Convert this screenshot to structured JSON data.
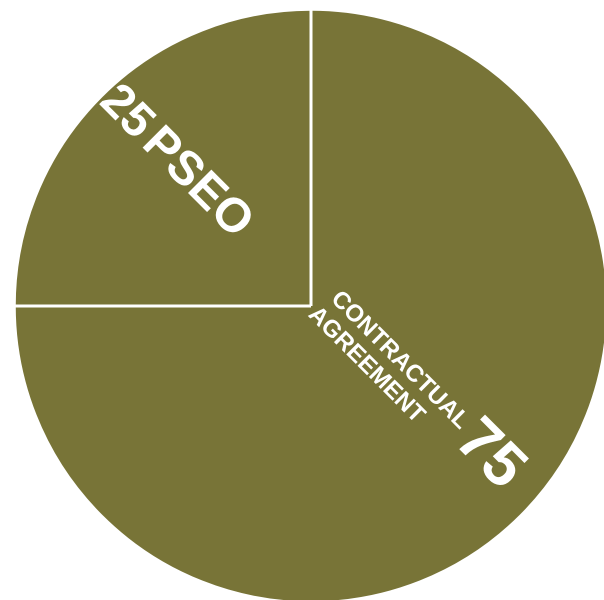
{
  "chart_data": {
    "type": "pie",
    "slices": [
      {
        "value": 25,
        "label": "PSEO",
        "value_label": "25"
      },
      {
        "value": 75,
        "label": "CONTRACTUAL AGREEMENT",
        "label_lines": [
          "CONTRACTUAL",
          "AGREEMENT"
        ],
        "value_label": "75"
      }
    ],
    "title": "",
    "legend": "none",
    "colors": {
      "slice_fill": "#787437",
      "separator": "#ffffff",
      "label_text": "#ffffff"
    }
  }
}
